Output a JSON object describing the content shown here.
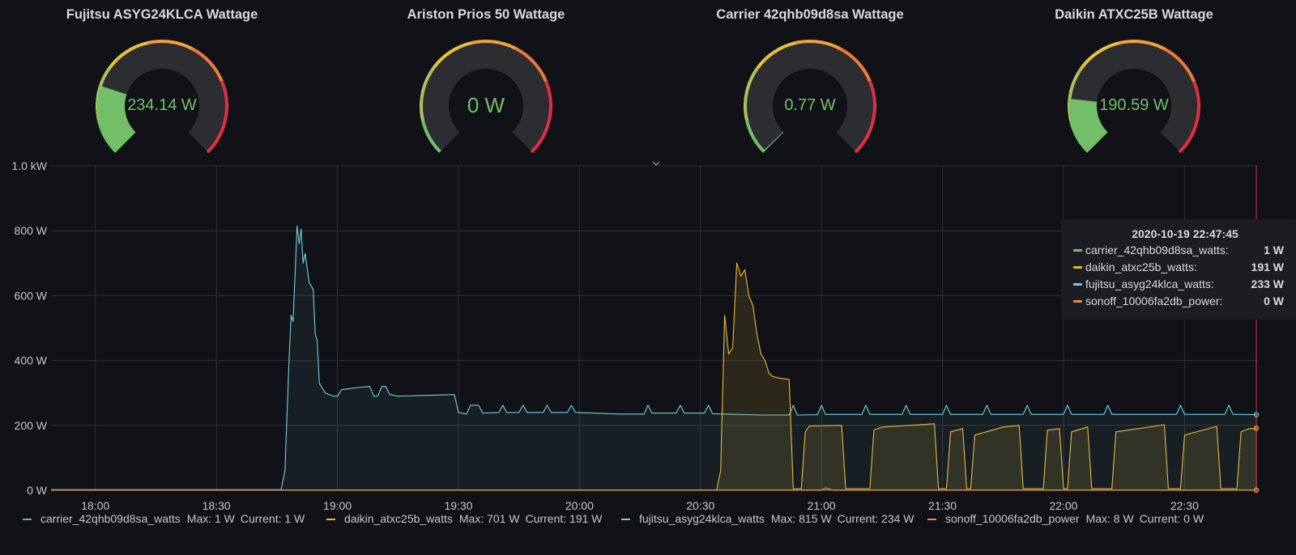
{
  "gauges": [
    {
      "title": "Fujitsu ASYG24KLCA Wattage",
      "value_text": "234.14 W",
      "value": 234.14,
      "max": 1000,
      "value_color": "#73bf69"
    },
    {
      "title": "Ariston Prios 50 Wattage",
      "value_text": "0 W",
      "value": 0,
      "max": 1000,
      "value_color": "#73bf69"
    },
    {
      "title": "Carrier 42qhb09d8sa Wattage",
      "value_text": "0.77 W",
      "value": 0.77,
      "max": 1000,
      "value_color": "#73bf69"
    },
    {
      "title": "Daikin ATXC25B Wattage",
      "value_text": "190.59 W",
      "value": 190.59,
      "max": 1000,
      "value_color": "#73bf69"
    }
  ],
  "tooltip": {
    "time": "2020-10-19 22:47:45",
    "rows": [
      {
        "name": "carrier_42qhb09d8sa_watts:",
        "value": "1 W",
        "color": "#73bf69"
      },
      {
        "name": "daikin_atxc25b_watts:",
        "value": "191 W",
        "color": "#eab839"
      },
      {
        "name": "fujitsu_asyg24klca_watts:",
        "value": "233 W",
        "color": "#6ed0e0"
      },
      {
        "name": "sonoff_10006fa2db_power:",
        "value": "0 W",
        "color": "#ef843c"
      }
    ]
  },
  "legend": [
    {
      "name": "carrier_42qhb09d8sa_watts",
      "max": "Max: 1 W",
      "current": "Current: 1 W",
      "color": "#73bf69"
    },
    {
      "name": "daikin_atxc25b_watts",
      "max": "Max: 701 W",
      "current": "Current: 191 W",
      "color": "#eab839"
    },
    {
      "name": "fujitsu_asyg24klca_watts",
      "max": "Max: 815 W",
      "current": "Current: 234 W",
      "color": "#6ed0e0"
    },
    {
      "name": "sonoff_10006fa2db_power",
      "max": "Max: 8 W",
      "current": "Current: 0 W",
      "color": "#ef843c"
    }
  ],
  "chart_data": {
    "type": "area",
    "y_axis": {
      "ticks": [
        0,
        200,
        400,
        600,
        800,
        1000
      ],
      "tick_labels": [
        "0 W",
        "200 W",
        "400 W",
        "600 W",
        "800 W",
        "1.0 kW"
      ],
      "ylim": [
        0,
        1000
      ]
    },
    "x_axis": {
      "tick_labels": [
        "18:00",
        "18:30",
        "19:00",
        "19:30",
        "20:00",
        "20:30",
        "21:00",
        "21:30",
        "22:00",
        "22:30"
      ],
      "range": [
        "17:49",
        "22:48"
      ]
    },
    "grid": true,
    "legend_position": "bottom",
    "series": [
      {
        "name": "fujitsu_asyg24klca_watts",
        "color": "#6ed0e0",
        "points": [
          [
            "17:49",
            2
          ],
          [
            "18:46",
            2
          ],
          [
            "18:47",
            60
          ],
          [
            "18:48",
            400
          ],
          [
            "18:48.5",
            540
          ],
          [
            "18:49",
            520
          ],
          [
            "18:50",
            815
          ],
          [
            "18:50.5",
            760
          ],
          [
            "18:51",
            805
          ],
          [
            "18:51.5",
            700
          ],
          [
            "18:52",
            730
          ],
          [
            "18:53",
            640
          ],
          [
            "18:54",
            620
          ],
          [
            "18:54.5",
            480
          ],
          [
            "18:55",
            460
          ],
          [
            "18:55.5",
            330
          ],
          [
            "18:57",
            300
          ],
          [
            "18:59",
            290
          ],
          [
            "19:00",
            290
          ],
          [
            "19:01",
            310
          ],
          [
            "19:04",
            315
          ],
          [
            "19:06",
            318
          ],
          [
            "19:08",
            320
          ],
          [
            "19:09",
            290
          ],
          [
            "19:10",
            290
          ],
          [
            "19:11",
            320
          ],
          [
            "19:12",
            320
          ],
          [
            "19:13",
            295
          ],
          [
            "19:15",
            290
          ],
          [
            "19:20",
            292
          ],
          [
            "19:29",
            295
          ],
          [
            "19:30",
            240
          ],
          [
            "19:32",
            235
          ],
          [
            "19:33",
            262
          ],
          [
            "19:35",
            262
          ],
          [
            "19:36",
            238
          ],
          [
            "19:40",
            240
          ],
          [
            "19:41",
            262
          ],
          [
            "19:42",
            240
          ],
          [
            "19:45",
            240
          ],
          [
            "19:46",
            262
          ],
          [
            "19:47",
            240
          ],
          [
            "19:51",
            240
          ],
          [
            "19:52",
            262
          ],
          [
            "19:53",
            240
          ],
          [
            "19:57",
            240
          ],
          [
            "19:58",
            262
          ],
          [
            "19:59",
            240
          ],
          [
            "20:10",
            235
          ],
          [
            "20:16",
            235
          ],
          [
            "20:17",
            262
          ],
          [
            "20:18",
            238
          ],
          [
            "20:24",
            238
          ],
          [
            "20:25",
            262
          ],
          [
            "20:26",
            238
          ],
          [
            "20:31",
            238
          ],
          [
            "20:32",
            262
          ],
          [
            "20:33",
            236
          ],
          [
            "20:45",
            232
          ],
          [
            "20:52",
            232
          ],
          [
            "20:53",
            262
          ],
          [
            "20:54",
            232
          ],
          [
            "20:59",
            233
          ],
          [
            "21:00",
            262
          ],
          [
            "21:01",
            234
          ],
          [
            "21:10",
            234
          ],
          [
            "21:11",
            262
          ],
          [
            "21:12",
            234
          ],
          [
            "21:20",
            234
          ],
          [
            "21:21",
            262
          ],
          [
            "21:22",
            234
          ],
          [
            "21:30",
            234
          ],
          [
            "21:31",
            262
          ],
          [
            "21:32",
            234
          ],
          [
            "21:40",
            234
          ],
          [
            "21:41",
            262
          ],
          [
            "21:42",
            234
          ],
          [
            "21:50",
            234
          ],
          [
            "21:51",
            262
          ],
          [
            "21:52",
            234
          ],
          [
            "22:00",
            234
          ],
          [
            "22:01",
            262
          ],
          [
            "22:02",
            234
          ],
          [
            "22:10",
            234
          ],
          [
            "22:11",
            262
          ],
          [
            "22:12",
            234
          ],
          [
            "22:20",
            234
          ],
          [
            "22:28",
            234
          ],
          [
            "22:29",
            262
          ],
          [
            "22:30",
            234
          ],
          [
            "22:40",
            234
          ],
          [
            "22:41",
            262
          ],
          [
            "22:42",
            234
          ],
          [
            "22:48",
            233
          ]
        ]
      },
      {
        "name": "daikin_atxc25b_watts",
        "color": "#eab839",
        "points": [
          [
            "17:49",
            0
          ],
          [
            "20:34",
            0
          ],
          [
            "20:35",
            60
          ],
          [
            "20:36",
            540
          ],
          [
            "20:37",
            420
          ],
          [
            "20:38",
            440
          ],
          [
            "20:39",
            701
          ],
          [
            "20:40",
            660
          ],
          [
            "20:41",
            680
          ],
          [
            "20:42",
            600
          ],
          [
            "20:43",
            570
          ],
          [
            "20:44",
            480
          ],
          [
            "20:45",
            420
          ],
          [
            "20:46",
            400
          ],
          [
            "20:47",
            360
          ],
          [
            "20:48",
            350
          ],
          [
            "20:50",
            345
          ],
          [
            "20:52",
            342
          ],
          [
            "20:53",
            5
          ],
          [
            "20:55",
            5
          ],
          [
            "20:56",
            180
          ],
          [
            "20:57",
            198
          ],
          [
            "21:05",
            200
          ],
          [
            "21:06",
            5
          ],
          [
            "21:12",
            5
          ],
          [
            "21:13",
            185
          ],
          [
            "21:15",
            195
          ],
          [
            "21:28",
            205
          ],
          [
            "21:29",
            5
          ],
          [
            "21:31",
            5
          ],
          [
            "21:32",
            180
          ],
          [
            "21:35",
            190
          ],
          [
            "21:36",
            5
          ],
          [
            "21:37",
            5
          ],
          [
            "21:38",
            170
          ],
          [
            "21:45",
            195
          ],
          [
            "21:49",
            200
          ],
          [
            "21:50",
            5
          ],
          [
            "21:55",
            5
          ],
          [
            "21:56",
            185
          ],
          [
            "21:59",
            190
          ],
          [
            "22:00",
            5
          ],
          [
            "22:01",
            5
          ],
          [
            "22:02",
            180
          ],
          [
            "22:06",
            195
          ],
          [
            "22:07",
            5
          ],
          [
            "22:12",
            5
          ],
          [
            "22:13",
            180
          ],
          [
            "22:25",
            202
          ],
          [
            "22:26",
            5
          ],
          [
            "22:29",
            5
          ],
          [
            "22:30",
            170
          ],
          [
            "22:38",
            197
          ],
          [
            "22:39",
            5
          ],
          [
            "22:43",
            5
          ],
          [
            "22:44",
            180
          ],
          [
            "22:46",
            190
          ],
          [
            "22:48",
            191
          ]
        ]
      },
      {
        "name": "carrier_42qhb09d8sa_watts",
        "color": "#73bf69",
        "points": [
          [
            "17:49",
            1
          ],
          [
            "22:48",
            1
          ]
        ]
      },
      {
        "name": "sonoff_10006fa2db_power",
        "color": "#ef843c",
        "points": [
          [
            "17:49",
            0
          ],
          [
            "21:00",
            0
          ],
          [
            "21:01",
            8
          ],
          [
            "21:03",
            0
          ],
          [
            "22:48",
            0
          ]
        ]
      }
    ]
  }
}
